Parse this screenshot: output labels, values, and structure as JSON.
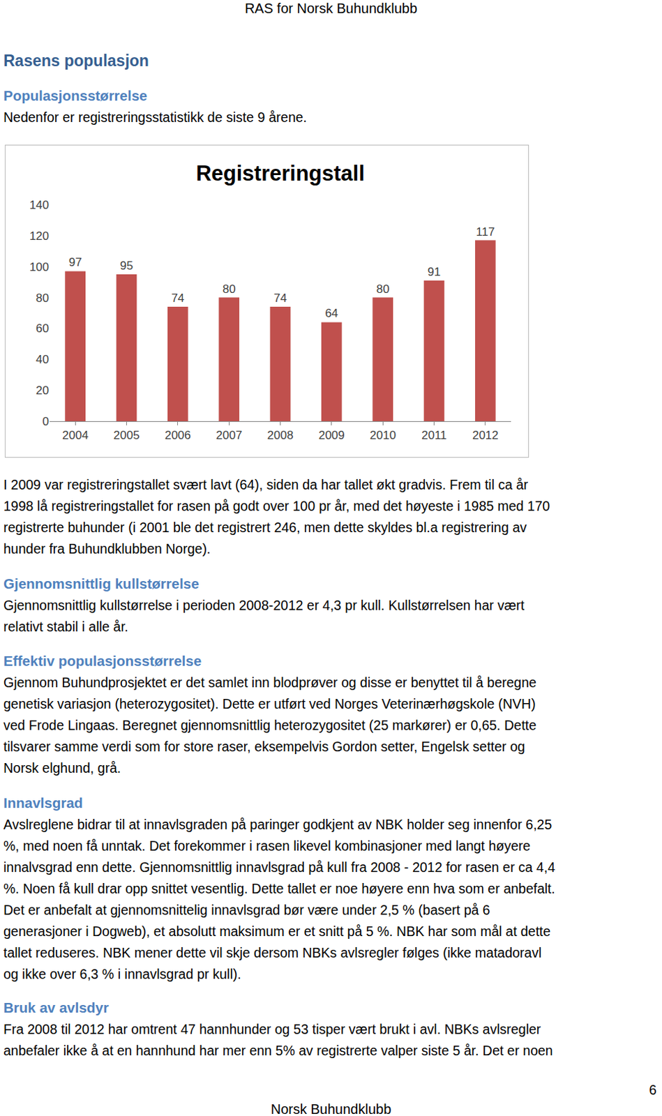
{
  "header": "RAS for Norsk Buhundklubb",
  "title": "Rasens populasjon",
  "sections": [
    {
      "heading": "Populasjonsstørrelse",
      "lines": [
        "Nedenfor er registreringsstatistikk de siste 9 årene."
      ],
      "lines_after_chart": [
        "I 2009 var registreringstallet svært lavt (64), siden da har tallet økt gradvis. Frem til ca år",
        "1998 lå registreringstallet for rasen på godt over 100 pr år, med det høyeste i 1985 med 170",
        "registrerte buhunder (i 2001 ble det registrert 246, men dette skyldes bl.a registrering av",
        "hunder fra Buhundklubben Norge)."
      ]
    },
    {
      "heading": "Gjennomsnittlig kullstørrelse",
      "lines": [
        "Gjennomsnittlig kullstørrelse i perioden 2008-2012 er 4,3 pr kull. Kullstørrelsen har vært",
        "relativt stabil i alle år."
      ]
    },
    {
      "heading": "Effektiv populasjonsstørrelse",
      "lines": [
        "Gjennom Buhundprosjektet er det samlet inn blodprøver og disse er benyttet til å beregne",
        "genetisk variasjon (heterozygositet). Dette er utført ved Norges Veterinærhøgskole (NVH)",
        "ved Frode Lingaas. Beregnet gjennomsnittlig heterozygositet (25 markører) er 0,65. Dette",
        "tilsvarer samme verdi som for store raser, eksempelvis Gordon setter, Engelsk setter og",
        "Norsk elghund, grå."
      ]
    },
    {
      "heading": "Innavlsgrad",
      "lines": [
        "Avslreglene bidrar til at innavlsgraden på paringer godkjent av NBK holder seg innenfor 6,25",
        "%, med noen få unntak. Det forekommer i rasen likevel kombinasjoner med langt høyere",
        "innalvsgrad enn dette. Gjennomsnittlig innavlsgrad på kull fra 2008 - 2012 for rasen er ca 4,4",
        "%. Noen få kull drar opp snittet vesentlig. Dette tallet er noe høyere enn hva som er anbefalt.",
        "Det er anbefalt at gjennomsnittelig innavlsgrad bør være under 2,5 % (basert på 6",
        "generasjoner i Dogweb), et absolutt maksimum er et snitt på 5 %. NBK har som mål at dette",
        "tallet reduseres. NBK mener dette vil skje dersom NBKs avlsregler følges (ikke matadoravl",
        "og ikke over 6,3 % i innavlsgrad pr kull)."
      ]
    },
    {
      "heading": "Bruk av avlsdyr",
      "lines": [
        "Fra 2008 til 2012 har omtrent 47 hannhunder og 53 tisper vært brukt i avl. NBKs avlsregler",
        "anbefaler ikke å at en hannhund har mer enn 5% av registrerte valper siste 5 år. Det er noen"
      ]
    }
  ],
  "chart_data": {
    "type": "bar",
    "title": "Registreringstall",
    "categories": [
      "2004",
      "2005",
      "2006",
      "2007",
      "2008",
      "2009",
      "2010",
      "2011",
      "2012"
    ],
    "values": [
      97,
      95,
      74,
      80,
      74,
      64,
      80,
      91,
      117
    ],
    "color": "#c0504d",
    "ylim": [
      0,
      140
    ],
    "yticks": [
      0,
      20,
      40,
      60,
      80,
      100,
      120,
      140
    ],
    "grid": false,
    "data_labels": true
  },
  "page_number": 6,
  "footer": "Norsk Buhundklubb"
}
